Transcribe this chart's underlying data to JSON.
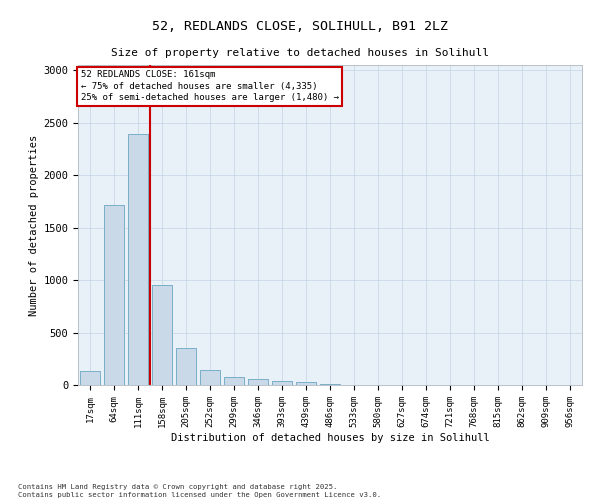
{
  "title_line1": "52, REDLANDS CLOSE, SOLIHULL, B91 2LZ",
  "title_line2": "Size of property relative to detached houses in Solihull",
  "xlabel": "Distribution of detached houses by size in Solihull",
  "ylabel": "Number of detached properties",
  "categories": [
    "17sqm",
    "64sqm",
    "111sqm",
    "158sqm",
    "205sqm",
    "252sqm",
    "299sqm",
    "346sqm",
    "393sqm",
    "439sqm",
    "486sqm",
    "533sqm",
    "580sqm",
    "627sqm",
    "674sqm",
    "721sqm",
    "768sqm",
    "815sqm",
    "862sqm",
    "909sqm",
    "956sqm"
  ],
  "values": [
    130,
    1720,
    2390,
    950,
    350,
    140,
    80,
    55,
    40,
    25,
    5,
    0,
    0,
    0,
    0,
    0,
    0,
    0,
    0,
    0,
    0
  ],
  "bar_color": "#c9d9e8",
  "bar_edge_color": "#7aaec8",
  "grid_color": "#c8d8e8",
  "background_color": "#e8f0f8",
  "vline_color": "#cc0000",
  "annotation_text": "52 REDLANDS CLOSE: 161sqm\n← 75% of detached houses are smaller (4,335)\n25% of semi-detached houses are larger (1,480) →",
  "annotation_box_color": "#cc0000",
  "ylim": [
    0,
    3050
  ],
  "yticks": [
    0,
    500,
    1000,
    1500,
    2000,
    2500,
    3000
  ],
  "footer_line1": "Contains HM Land Registry data © Crown copyright and database right 2025.",
  "footer_line2": "Contains public sector information licensed under the Open Government Licence v3.0."
}
